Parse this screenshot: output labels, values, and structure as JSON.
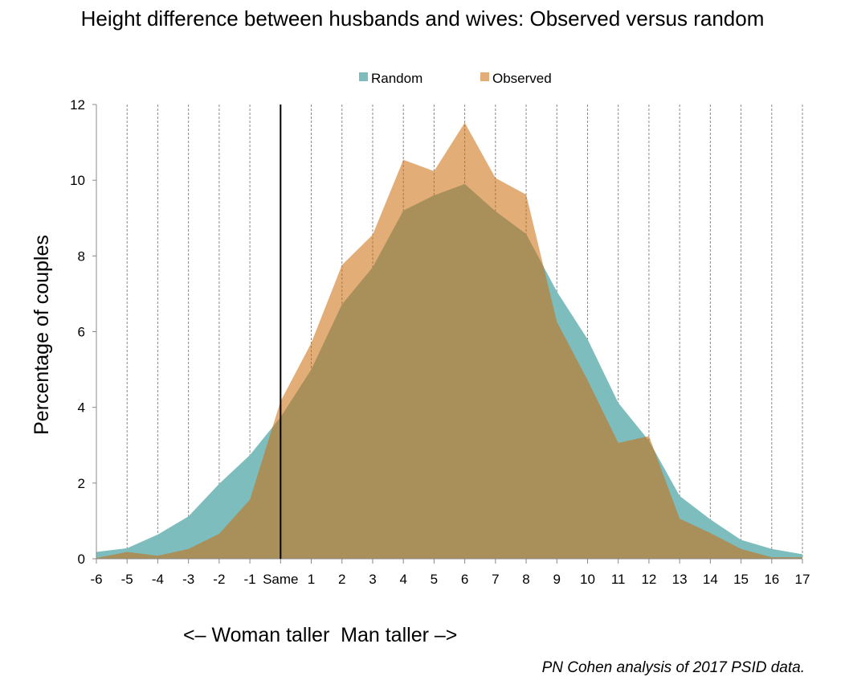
{
  "chart_data": {
    "type": "area",
    "title": "Height difference between husbands and wives: Observed versus random",
    "ylabel": "Percentage of couples",
    "xlabel": "<– Woman taller  Man taller –>",
    "categories": [
      "-6",
      "-5",
      "-4",
      "-3",
      "-2",
      "-1",
      "Same",
      "1",
      "2",
      "3",
      "4",
      "5",
      "6",
      "7",
      "8",
      "9",
      "10",
      "11",
      "12",
      "13",
      "14",
      "15",
      "16",
      "17"
    ],
    "ylim": [
      0,
      12
    ],
    "yticks": [
      "0",
      "2",
      "4",
      "6",
      "8",
      "10",
      "12"
    ],
    "grid": "vertical dashed",
    "legend": "top",
    "reference_line": "Same",
    "series": [
      {
        "name": "Random",
        "color": "#7ebdbd",
        "values": [
          0.18,
          0.28,
          0.64,
          1.12,
          1.98,
          2.74,
          3.74,
          5.0,
          6.72,
          7.7,
          9.2,
          9.6,
          9.9,
          9.18,
          8.58,
          7.06,
          5.8,
          4.12,
          3.12,
          1.66,
          1.04,
          0.5,
          0.26,
          0.12
        ]
      },
      {
        "name": "Observed",
        "color": "#e3ad78",
        "values": [
          0.02,
          0.18,
          0.08,
          0.26,
          0.66,
          1.56,
          4.16,
          5.7,
          7.76,
          8.56,
          10.54,
          10.24,
          11.52,
          10.06,
          9.62,
          6.26,
          4.72,
          3.06,
          3.24,
          1.06,
          0.68,
          0.26,
          0.04,
          0.04
        ]
      }
    ]
  },
  "source": "PN Cohen analysis of 2017 PSID data."
}
